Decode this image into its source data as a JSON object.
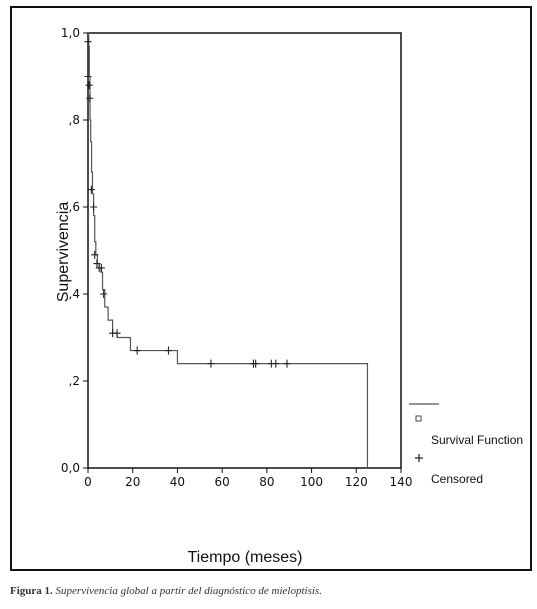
{
  "chart_data": {
    "type": "line",
    "xlabel": "Tiempo (meses)",
    "ylabel": "Supervivencia",
    "xlim": [
      0,
      140
    ],
    "ylim": [
      0,
      1.0
    ],
    "x_ticks": [
      {
        "value": 0,
        "label": "0"
      },
      {
        "value": 20,
        "label": "20"
      },
      {
        "value": 40,
        "label": "40"
      },
      {
        "value": 60,
        "label": "60"
      },
      {
        "value": 80,
        "label": "80"
      },
      {
        "value": 100,
        "label": "100"
      },
      {
        "value": 120,
        "label": "120"
      },
      {
        "value": 140,
        "label": "140"
      }
    ],
    "y_ticks": [
      {
        "value": 0.0,
        "label": "0,0"
      },
      {
        "value": 0.2,
        "label": ",2"
      },
      {
        "value": 0.4,
        "label": ",4"
      },
      {
        "value": 0.6,
        "label": ",6"
      },
      {
        "value": 0.8,
        "label": ",8"
      },
      {
        "value": 1.0,
        "label": "1,0"
      }
    ],
    "grid": false,
    "legend_position": "right",
    "series": [
      {
        "name": "Survival Function",
        "color": "#555555",
        "step_points": [
          [
            0,
            1.0
          ],
          [
            0.3,
            0.97
          ],
          [
            0.6,
            0.9
          ],
          [
            0.9,
            0.8
          ],
          [
            1.2,
            0.75
          ],
          [
            1.6,
            0.68
          ],
          [
            2.0,
            0.63
          ],
          [
            2.5,
            0.58
          ],
          [
            3.0,
            0.52
          ],
          [
            3.5,
            0.49
          ],
          [
            4.2,
            0.47
          ],
          [
            5.0,
            0.46
          ],
          [
            5.8,
            0.45
          ],
          [
            6.5,
            0.41
          ],
          [
            7.5,
            0.37
          ],
          [
            9.0,
            0.34
          ],
          [
            11.0,
            0.31
          ],
          [
            13.0,
            0.3
          ],
          [
            19.0,
            0.27
          ],
          [
            40.0,
            0.24
          ],
          [
            125.0,
            0.24
          ],
          [
            125.0,
            0.0
          ]
        ]
      },
      {
        "name": "Censored",
        "color": "#222222",
        "points": [
          [
            0,
            0.98
          ],
          [
            0,
            0.9
          ],
          [
            0.5,
            0.88
          ],
          [
            0.8,
            0.85
          ],
          [
            1.5,
            0.64
          ],
          [
            2.5,
            0.6
          ],
          [
            3.0,
            0.49
          ],
          [
            4.0,
            0.47
          ],
          [
            5.0,
            0.46
          ],
          [
            6.0,
            0.46
          ],
          [
            7.0,
            0.4
          ],
          [
            11.0,
            0.31
          ],
          [
            13.0,
            0.31
          ],
          [
            22.0,
            0.27
          ],
          [
            36.0,
            0.27
          ],
          [
            55.0,
            0.24
          ],
          [
            74.0,
            0.24
          ],
          [
            75.0,
            0.24
          ],
          [
            82.0,
            0.24
          ],
          [
            84.0,
            0.24
          ],
          [
            89.0,
            0.24
          ]
        ]
      }
    ]
  },
  "caption": {
    "label": "Figura 1.",
    "text": "Supervivencia global a partir del diagnóstico de mieloptisis."
  }
}
